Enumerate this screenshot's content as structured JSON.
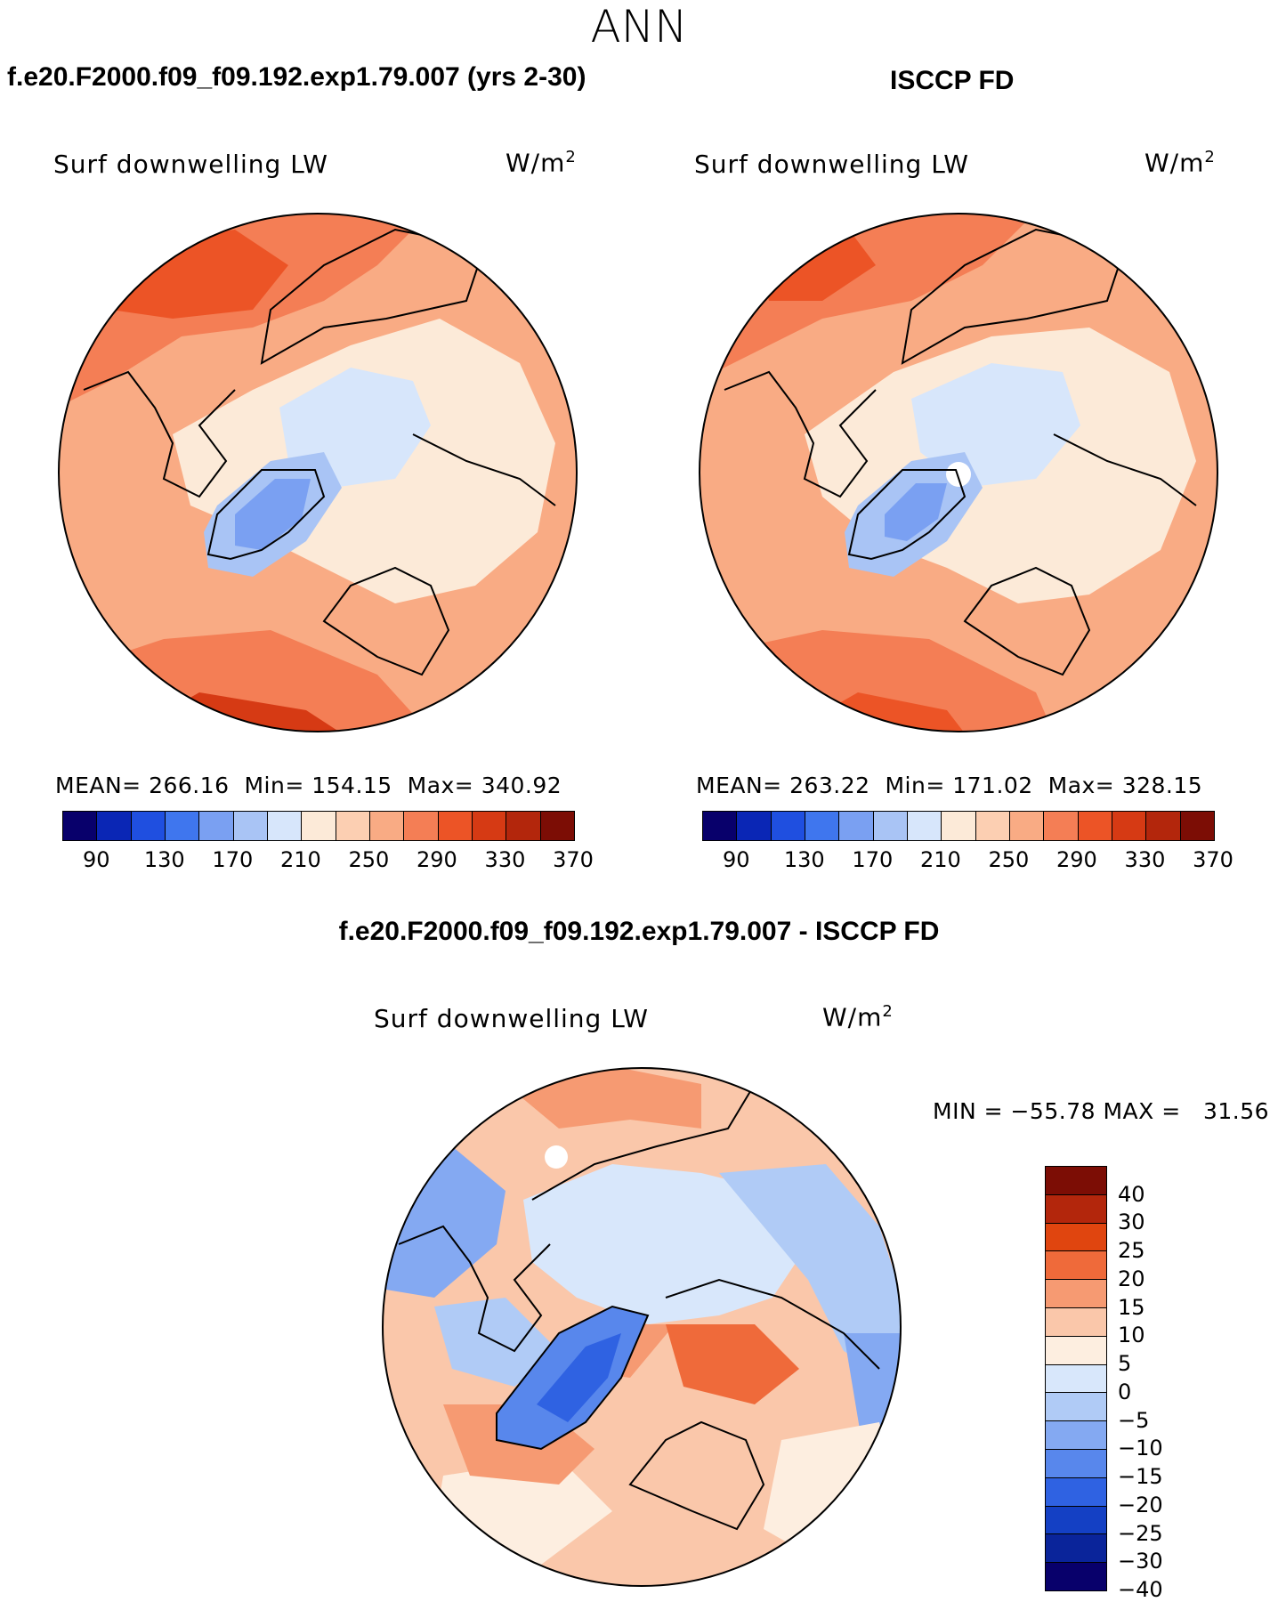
{
  "season": "ANN",
  "panels": [
    {
      "title": "f.e20.F2000.f09_f09.192.exp1.79.007 (yrs 2-30)",
      "variable": "Surf downwelling LW",
      "units": "W/m",
      "units_exp": "2",
      "mean_label": "MEAN=",
      "mean": "266.16",
      "min_label": "Min=",
      "min": "154.15",
      "max_label": "Max=",
      "max": "340.92"
    },
    {
      "title": "ISCCP FD",
      "variable": "Surf downwelling LW",
      "units": "W/m",
      "units_exp": "2",
      "mean_label": "MEAN=",
      "mean": "263.22",
      "min_label": "Min=",
      "min": "171.02",
      "max_label": "Max=",
      "max": "328.15"
    }
  ],
  "diff": {
    "title": "f.e20.F2000.f09_f09.192.exp1.79.007 - ISCCP FD",
    "variable": "Surf downwelling LW",
    "units": "W/m",
    "units_exp": "2",
    "stats": "MIN = −55.78 MAX =   31.56"
  },
  "colorbar_abs": {
    "colors": [
      "#08006b",
      "#0a26b5",
      "#1f4fe0",
      "#3f76ee",
      "#7aa0f2",
      "#a9c4f5",
      "#d7e6fb",
      "#fcead8",
      "#fccfb2",
      "#f9ab84",
      "#f47e55",
      "#ec5426",
      "#d63a14",
      "#b3260c",
      "#7c0d05"
    ],
    "ticks": [
      "90",
      "130",
      "170",
      "210",
      "250",
      "290",
      "330",
      "370"
    ]
  },
  "colorbar_diff": {
    "colors": [
      "#7c0d05",
      "#b3260c",
      "#e0450f",
      "#ef6a3a",
      "#f69a72",
      "#fac7aa",
      "#fdeee0",
      "#d8e7fb",
      "#b0cbf6",
      "#84a9f2",
      "#5887ec",
      "#2f62e2",
      "#1440c4",
      "#0a249a",
      "#08006b"
    ],
    "ticks": [
      "40",
      "30",
      "25",
      "20",
      "15",
      "10",
      "5",
      "0",
      "−5",
      "−10",
      "−15",
      "−20",
      "−25",
      "−30",
      "−40"
    ]
  }
}
